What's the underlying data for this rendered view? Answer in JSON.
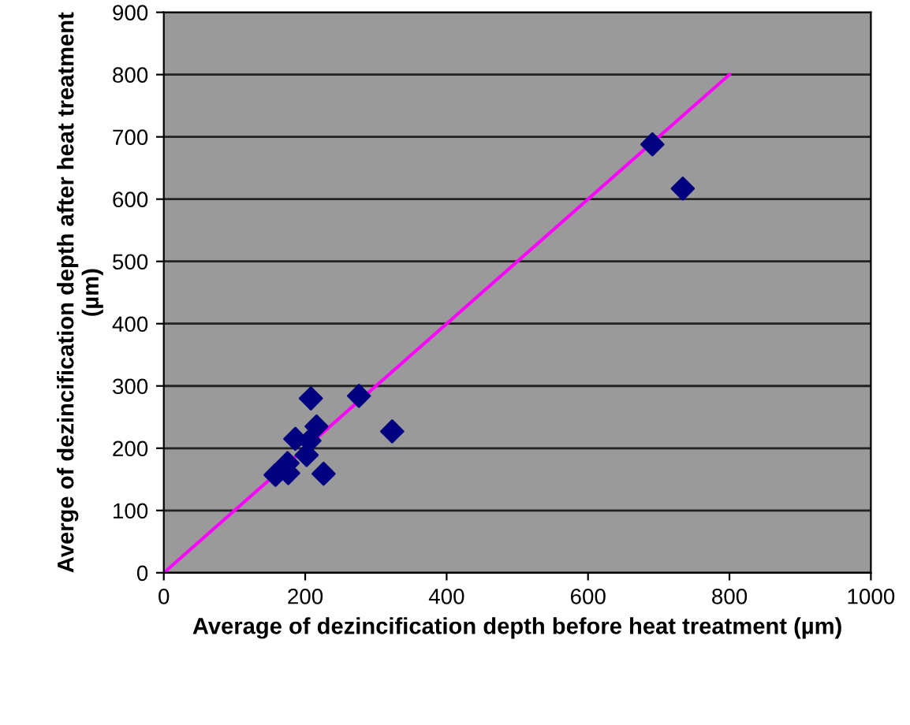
{
  "chart_data": {
    "type": "scatter",
    "xlabel": "Average of dezincification depth before heat treatment (µm)",
    "ylabel": "Averge of dezincification depth after heat treatment (µm)",
    "series": [
      {
        "color": "#000080",
        "marker": "diamond",
        "x": [
          208,
          276,
          216,
          323,
          186,
          206,
          202,
          175,
          158,
          176,
          226,
          691,
          734
        ],
        "values": [
          280,
          284,
          235,
          227,
          215,
          212,
          189,
          176,
          157,
          160,
          159,
          688,
          617
        ]
      },
      {
        "type": "line",
        "color": "#ff00ff",
        "marker": "none",
        "x": [
          0,
          800
        ],
        "values": [
          0,
          800
        ]
      }
    ],
    "xlim": [
      0,
      1000
    ],
    "xticks": [
      0,
      200,
      400,
      600,
      800,
      1000
    ],
    "ylim": [
      0,
      900
    ],
    "yticks": [
      0,
      100,
      200,
      300,
      400,
      500,
      600,
      700,
      800,
      900
    ],
    "grid": "y",
    "legend": false
  }
}
